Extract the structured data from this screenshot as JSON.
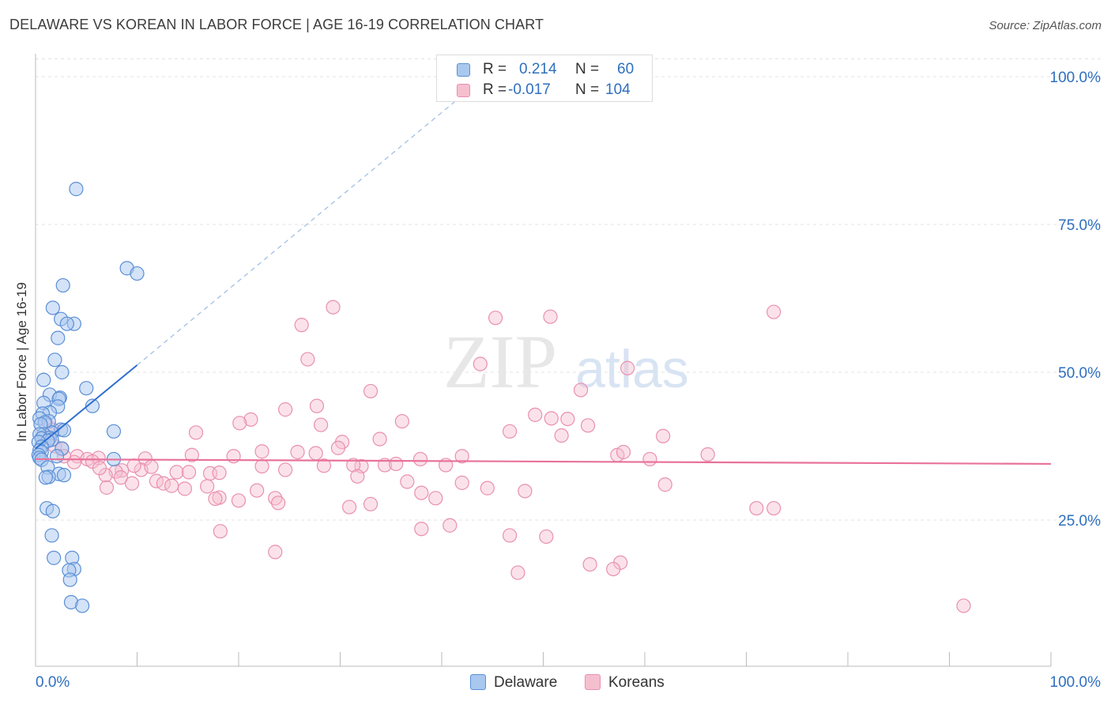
{
  "title": "DELAWARE VS KOREAN IN LABOR FORCE | AGE 16-19 CORRELATION CHART",
  "source": "Source: ZipAtlas.com",
  "watermark": {
    "zip": "ZIP",
    "atlas": "atlas"
  },
  "legend": {
    "rows": [
      {
        "r_label": "R =",
        "r_value": "0.214",
        "n_label": "N =",
        "n_value": "60"
      },
      {
        "r_label": "R =",
        "r_value": "-0.017",
        "n_label": "N =",
        "n_value": "104"
      }
    ]
  },
  "bottom_legend": {
    "delaware": "Delaware",
    "koreans": "Koreans"
  },
  "colors": {
    "delaware_fill": "#a9c8ef",
    "delaware_stroke": "#5b8fd6",
    "delaware_line": "#2f6fd0",
    "koreans_fill": "#f6bfd0",
    "koreans_stroke": "#e990ae",
    "koreans_line": "#e8729a",
    "tick_label": "#2f6fbf",
    "grid": "#e3e3e3"
  },
  "chart_data": {
    "type": "scatter",
    "title": "DELAWARE VS KOREAN IN LABOR FORCE | AGE 16-19 CORRELATION CHART",
    "xlabel": "",
    "ylabel": "In Labor Force | Age 16-19",
    "xlim": [
      0,
      100
    ],
    "ylim": [
      0,
      103
    ],
    "x_tick_labels": [
      "0.0%",
      "100.0%"
    ],
    "y_ticks": [
      25,
      50,
      75,
      100
    ],
    "y_tick_labels": [
      "25.0%",
      "50.0%",
      "75.0%",
      "100.0%"
    ],
    "grid": true,
    "series": [
      {
        "name": "Delaware",
        "r": 0.214,
        "n": 60,
        "trend": {
          "x": [
            0,
            10
          ],
          "y": [
            37.1,
            51.2
          ],
          "dashed_to": [
            42.5,
            97.5
          ]
        },
        "points": [
          [
            4,
            81
          ],
          [
            9,
            67.6
          ],
          [
            10,
            66.7
          ],
          [
            2.7,
            64.7
          ],
          [
            1.7,
            60.9
          ],
          [
            2.5,
            59
          ],
          [
            3.8,
            58.2
          ],
          [
            3.1,
            58.2
          ],
          [
            2.2,
            55.8
          ],
          [
            1.9,
            52.1
          ],
          [
            2.6,
            50
          ],
          [
            0.8,
            48.7
          ],
          [
            5,
            47.3
          ],
          [
            1.4,
            46.2
          ],
          [
            2.4,
            45.7
          ],
          [
            2.3,
            45.5
          ],
          [
            0.8,
            44.8
          ],
          [
            5.6,
            44.3
          ],
          [
            2.2,
            44.2
          ],
          [
            1.4,
            43.2
          ],
          [
            0.7,
            43
          ],
          [
            0.4,
            42.2
          ],
          [
            1.3,
            41.7
          ],
          [
            0.9,
            41.5
          ],
          [
            0.5,
            41.2
          ],
          [
            2.5,
            40.3
          ],
          [
            2.8,
            40.2
          ],
          [
            7.7,
            40
          ],
          [
            1.6,
            39.8
          ],
          [
            0.8,
            39.5
          ],
          [
            0.4,
            39.5
          ],
          [
            1.4,
            38.9
          ],
          [
            0.6,
            38.8
          ],
          [
            1.6,
            38.6
          ],
          [
            1.2,
            38.4
          ],
          [
            0.3,
            38.2
          ],
          [
            0.6,
            37.4
          ],
          [
            2.6,
            37.1
          ],
          [
            0.4,
            36.8
          ],
          [
            0.6,
            36.5
          ],
          [
            0.3,
            36
          ],
          [
            2.1,
            35.8
          ],
          [
            0.4,
            35.5
          ],
          [
            7.7,
            35.3
          ],
          [
            0.6,
            35.2
          ],
          [
            1.2,
            33.9
          ],
          [
            2.3,
            32.8
          ],
          [
            2.8,
            32.6
          ],
          [
            1.3,
            32.3
          ],
          [
            1.0,
            32.2
          ],
          [
            1.1,
            27
          ],
          [
            1.7,
            26.5
          ],
          [
            1.6,
            22.4
          ],
          [
            1.8,
            18.6
          ],
          [
            3.6,
            18.6
          ],
          [
            3.8,
            16.7
          ],
          [
            3.3,
            16.5
          ],
          [
            3.4,
            14.9
          ],
          [
            3.5,
            11.1
          ],
          [
            4.6,
            10.5
          ]
        ]
      },
      {
        "name": "Koreans",
        "r": -0.017,
        "n": 104,
        "trend": {
          "x": [
            0,
            100
          ],
          "y": [
            35.3,
            34.5
          ]
        },
        "points": [
          [
            29.3,
            61
          ],
          [
            72.7,
            60.2
          ],
          [
            45.3,
            59.2
          ],
          [
            50.7,
            59.4
          ],
          [
            26.2,
            58
          ],
          [
            26.8,
            52.2
          ],
          [
            43.8,
            51.4
          ],
          [
            58.3,
            50.7
          ],
          [
            33,
            46.8
          ],
          [
            53.7,
            47
          ],
          [
            24.6,
            43.7
          ],
          [
            27.7,
            44.3
          ],
          [
            49.2,
            42.8
          ],
          [
            50.8,
            42.2
          ],
          [
            52.4,
            42.1
          ],
          [
            21.2,
            42
          ],
          [
            20.1,
            41.4
          ],
          [
            36.1,
            41.7
          ],
          [
            28.1,
            41.1
          ],
          [
            54.4,
            41
          ],
          [
            46.7,
            40
          ],
          [
            15.8,
            39.8
          ],
          [
            61.8,
            39.2
          ],
          [
            51.8,
            39.3
          ],
          [
            33.9,
            38.7
          ],
          [
            30.2,
            38.2
          ],
          [
            29.8,
            37.2
          ],
          [
            1.0,
            41.5
          ],
          [
            1.4,
            39.7
          ],
          [
            1.7,
            40.3
          ],
          [
            1.9,
            37.5
          ],
          [
            2.6,
            37.0
          ],
          [
            4.1,
            35.8
          ],
          [
            22.3,
            36.6
          ],
          [
            25.8,
            36.5
          ],
          [
            27.6,
            36.3
          ],
          [
            15.4,
            36.0
          ],
          [
            19.5,
            35.8
          ],
          [
            42.0,
            35.8
          ],
          [
            37.9,
            35.3
          ],
          [
            66.2,
            36.1
          ],
          [
            57.3,
            36.0
          ],
          [
            60.5,
            35.3
          ],
          [
            57.9,
            36.5
          ],
          [
            5.1,
            35.3
          ],
          [
            6.2,
            35.5
          ],
          [
            5.6,
            34.9
          ],
          [
            10.8,
            35.4
          ],
          [
            10.4,
            33.5
          ],
          [
            3.8,
            34.8
          ],
          [
            2.8,
            35.8
          ],
          [
            9.7,
            34.2
          ],
          [
            8.5,
            33.4
          ],
          [
            11.4,
            34.0
          ],
          [
            13.9,
            33.1
          ],
          [
            15.1,
            33.1
          ],
          [
            7.9,
            33.2
          ],
          [
            17.2,
            32.9
          ],
          [
            18.1,
            33.0
          ],
          [
            22.3,
            34.1
          ],
          [
            24.6,
            33.5
          ],
          [
            28.4,
            34.2
          ],
          [
            32.1,
            34.1
          ],
          [
            34.4,
            34.3
          ],
          [
            35.5,
            34.5
          ],
          [
            40.4,
            34.3
          ],
          [
            31.3,
            34.3
          ],
          [
            6.9,
            32.6
          ],
          [
            11.9,
            31.6
          ],
          [
            8.4,
            32.2
          ],
          [
            12.6,
            31.2
          ],
          [
            13.4,
            30.8
          ],
          [
            9.5,
            31.2
          ],
          [
            14.7,
            30.3
          ],
          [
            16.9,
            30.7
          ],
          [
            7.0,
            30.5
          ],
          [
            18.1,
            28.8
          ],
          [
            21.8,
            30.0
          ],
          [
            17.7,
            28.6
          ],
          [
            20.0,
            28.3
          ],
          [
            23.6,
            28.7
          ],
          [
            31.7,
            32.4
          ],
          [
            36.6,
            31.5
          ],
          [
            42.0,
            31.3
          ],
          [
            38.0,
            29.6
          ],
          [
            39.4,
            28.7
          ],
          [
            23.9,
            27.9
          ],
          [
            30.9,
            27.2
          ],
          [
            33.0,
            27.7
          ],
          [
            71.0,
            27.0
          ],
          [
            72.7,
            27.0
          ],
          [
            62.0,
            31.0
          ],
          [
            48.2,
            29.9
          ],
          [
            44.5,
            30.4
          ],
          [
            38.0,
            23.5
          ],
          [
            40.8,
            24.1
          ],
          [
            46.7,
            22.4
          ],
          [
            50.3,
            22.2
          ],
          [
            18.2,
            23.1
          ],
          [
            23.6,
            19.6
          ],
          [
            54.6,
            17.5
          ],
          [
            57.6,
            17.8
          ],
          [
            56.9,
            16.7
          ],
          [
            47.5,
            16.1
          ],
          [
            91.4,
            10.5
          ],
          [
            6.3,
            33.8
          ]
        ]
      }
    ]
  }
}
